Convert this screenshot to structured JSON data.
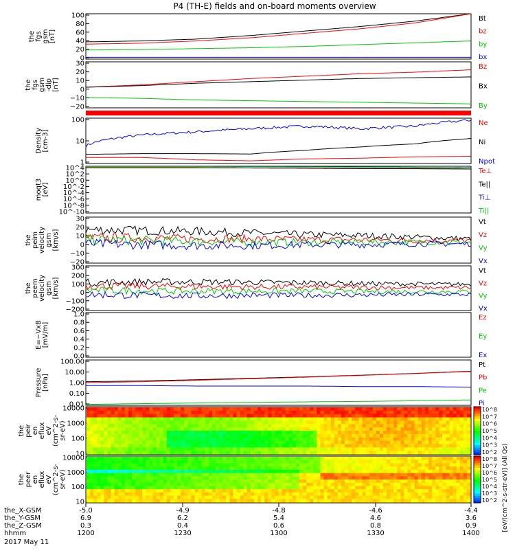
{
  "title": "P4 (TH-E) fields and on-board moments overview",
  "date_label": "2017 May 11",
  "footer": {
    "rows": [
      {
        "label": "the_X-GSM",
        "values": [
          "-5.0",
          "-4.9",
          "-4.8",
          "-4.6",
          "-4.4"
        ]
      },
      {
        "label": "the_Y-GSM",
        "values": [
          "6.9",
          "6.2",
          "5.4",
          "4.6",
          "3.6"
        ]
      },
      {
        "label": "the_Z-GSM",
        "values": [
          "0.3",
          "0.4",
          "0.6",
          "0.8",
          "0.9"
        ]
      },
      {
        "label": "hhmm",
        "values": [
          "1200",
          "1230",
          "1300",
          "1330",
          "1400"
        ]
      }
    ]
  },
  "colorbar_label": "[eV/(cm^2-s-str-eV)] (All Qs)",
  "colors": {
    "black": "#000000",
    "red": "#ff0000",
    "green": "#00c800",
    "blue": "#0000ff"
  },
  "chart_data": [
    {
      "type": "line",
      "ylabel": [
        "the",
        "fgs",
        "gsm",
        "[nT]"
      ],
      "yticks": [
        "100",
        "80",
        "60",
        "40",
        "20",
        "0"
      ],
      "ylim": [
        0,
        100
      ],
      "series": [
        {
          "name": "Bt",
          "color": "#000000",
          "values": [
            38,
            40,
            44,
            52,
            62,
            72,
            84,
            100
          ]
        },
        {
          "name": "bz",
          "color": "#ff0000",
          "values": [
            33,
            35,
            40,
            47,
            57,
            67,
            80,
            100
          ]
        },
        {
          "name": "by",
          "color": "#00c800",
          "values": [
            20,
            21,
            23,
            25,
            28,
            32,
            36,
            40
          ]
        },
        {
          "name": "bx",
          "color": "#0000ff",
          "values": [
            4,
            4,
            4,
            4,
            4,
            4,
            4,
            4
          ]
        }
      ]
    },
    {
      "type": "line",
      "ylabel": [
        "the",
        "fgs",
        "gsm",
        "-dip",
        "[nT]"
      ],
      "yticks": [
        "30",
        "20",
        "10",
        "0",
        "−10",
        "−20"
      ],
      "ylim": [
        -25,
        33
      ],
      "series": [
        {
          "name": "Bz",
          "color": "#ff0000",
          "values": [
            1,
            4,
            8,
            12,
            15,
            18,
            20,
            23
          ]
        },
        {
          "name": "Bx",
          "color": "#000000",
          "values": [
            1,
            3,
            6,
            8,
            10,
            12,
            13,
            14
          ]
        },
        {
          "name": "By",
          "color": "#00c800",
          "values": [
            -12,
            -13,
            -15,
            -16,
            -17,
            -18,
            -19,
            -20
          ]
        }
      ]
    },
    {
      "type": "bar",
      "ylabel": [],
      "yticks": [],
      "series": []
    },
    {
      "type": "line",
      "ylabel": [
        "Density",
        "[cm-3]"
      ],
      "yticks": [
        "100",
        "10",
        "1"
      ],
      "ylog": true,
      "ylim": [
        0.2,
        200
      ],
      "series": [
        {
          "name": "Ne",
          "color": "#ff0000",
          "values": [
            0.5,
            0.5,
            0.35,
            0.3,
            0.4,
            0.45,
            0.55,
            0.6
          ]
        },
        {
          "name": "Ni",
          "color": "#000000",
          "values": [
            0.8,
            0.9,
            0.9,
            0.85,
            1.5,
            2.5,
            4,
            9
          ]
        },
        {
          "name": "Npot",
          "color": "#0000ff",
          "values": [
            3,
            15,
            25,
            40,
            60,
            40,
            60,
            150
          ]
        }
      ]
    },
    {
      "type": "line",
      "ylabel": [
        "moqt3",
        "[eV]"
      ],
      "yticks": [
        "10^4",
        "10^2",
        "10^0",
        "10^-2",
        "10^-4",
        "10^-6",
        "10^-8",
        "10^-10"
      ],
      "ylog": true,
      "ylim": [
        1e-10,
        10000.0
      ],
      "series": [
        {
          "name": "Te⊥",
          "color": "#ff0000",
          "values": [
            4000,
            4000,
            4000,
            3000,
            3000,
            2000,
            2000,
            1500
          ]
        },
        {
          "name": "Te||",
          "color": "#000000",
          "values": [
            3500,
            3500,
            3500,
            3000,
            2500,
            2000,
            1800,
            1500
          ]
        },
        {
          "name": "Ti⊥",
          "color": "#0000ff",
          "values": [
            9000,
            9000,
            9000,
            8000,
            7000,
            6000,
            5000,
            4000
          ]
        },
        {
          "name": "Ti||",
          "color": "#00c800",
          "values": [
            8000,
            8000,
            8000,
            7000,
            6500,
            5500,
            4500,
            3500
          ]
        }
      ]
    },
    {
      "type": "line",
      "ylabel": [
        "the",
        "peim",
        "velocity",
        "gsm",
        "[km/s]"
      ],
      "yticks": [
        "30",
        "20",
        "10",
        "0",
        "−10",
        "−20"
      ],
      "ylim": [
        -25,
        30
      ],
      "series": [
        {
          "name": "Vt",
          "color": "#000000",
          "values": [
            15,
            14,
            13,
            11,
            9,
            8,
            6,
            4
          ]
        },
        {
          "name": "Vz",
          "color": "#ff0000",
          "values": [
            5,
            5,
            4,
            4,
            3,
            3,
            2,
            2
          ]
        },
        {
          "name": "Vy",
          "color": "#00c800",
          "values": [
            3,
            2,
            1,
            0,
            0,
            0,
            0,
            0
          ]
        },
        {
          "name": "Vx",
          "color": "#0000ff",
          "values": [
            -2,
            -3,
            -4,
            -4,
            -3,
            -3,
            -2,
            -2
          ]
        }
      ]
    },
    {
      "type": "line",
      "ylabel": [
        "the",
        "peem",
        "velocity",
        "gsm",
        "[km/s]"
      ],
      "yticks": [
        "300",
        "200",
        "100",
        "0",
        "−100",
        "−200"
      ],
      "ylim": [
        -230,
        300
      ],
      "series": [
        {
          "name": "Vt",
          "color": "#000000",
          "values": [
            100,
            110,
            110,
            105,
            100,
            90,
            85,
            80
          ]
        },
        {
          "name": "Vz",
          "color": "#ff0000",
          "values": [
            60,
            60,
            55,
            50,
            50,
            45,
            40,
            40
          ]
        },
        {
          "name": "Vy",
          "color": "#00c800",
          "values": [
            10,
            5,
            0,
            0,
            0,
            -5,
            -5,
            -5
          ]
        },
        {
          "name": "Vx",
          "color": "#0000ff",
          "values": [
            -40,
            -50,
            -55,
            -50,
            -50,
            -45,
            -40,
            -40
          ]
        }
      ]
    },
    {
      "type": "line",
      "ylabel": [
        "E=−VxB",
        "[mV/m]"
      ],
      "yticks": [
        "1.0",
        "0.8",
        "0.6",
        "0.4",
        "0.2",
        "0.0"
      ],
      "ylim": [
        0,
        1
      ],
      "series": [
        {
          "name": "Ez",
          "color": "#ff0000",
          "values": []
        },
        {
          "name": "Ey",
          "color": "#00c800",
          "values": []
        },
        {
          "name": "Ex",
          "color": "#0000ff",
          "values": []
        }
      ]
    },
    {
      "type": "line",
      "ylabel": [
        "Pressure",
        "[nPa]"
      ],
      "yticks": [
        "100.00",
        "10.00",
        "1.00",
        "0.10",
        "0.01"
      ],
      "ylog": true,
      "ylim": [
        0.01,
        100
      ],
      "series": [
        {
          "name": "Pt",
          "color": "#000000",
          "values": [
            1.2,
            1.4,
            1.8,
            2.4,
            3.2,
            4.5,
            6.5,
            10
          ]
        },
        {
          "name": "Pb",
          "color": "#ff0000",
          "values": [
            1.0,
            1.2,
            1.6,
            2.2,
            3.0,
            4.3,
            6.3,
            9.5
          ]
        },
        {
          "name": "Pe",
          "color": "#00c800",
          "values": [
            0.012,
            0.014,
            0.016,
            0.018,
            0.02,
            0.022,
            0.025,
            0.03
          ]
        },
        {
          "name": "Pi",
          "color": "#0000ff",
          "values": [
            0.55,
            0.55,
            0.5,
            0.5,
            0.5,
            0.45,
            0.45,
            0.4
          ]
        }
      ]
    },
    {
      "type": "heatmap",
      "ylabel": [
        "the",
        "peir",
        "en",
        "eflux",
        "eV",
        "(cm^2-s-",
        "sr-eV)"
      ],
      "yticks": [
        "10000",
        "1000",
        "100",
        "10"
      ],
      "ylog": true,
      "ylim": [
        6,
        25000
      ],
      "colorbar_ticks": [
        "10^8",
        "10^7",
        "10^6",
        "10^5",
        "10^4",
        "10^3",
        "10^2"
      ]
    },
    {
      "type": "heatmap",
      "ylabel": [
        "the",
        "peer",
        "en",
        "eflux",
        "eV",
        "(cm^2-s-",
        "sr-eV)"
      ],
      "yticks": [
        "10000",
        "1000",
        "100",
        "10"
      ],
      "ylog": true,
      "ylim": [
        6,
        25000
      ],
      "colorbar_ticks": [
        "10^8",
        "10^7",
        "10^6",
        "10^5",
        "10^4",
        "10^3",
        "10^2"
      ]
    }
  ]
}
